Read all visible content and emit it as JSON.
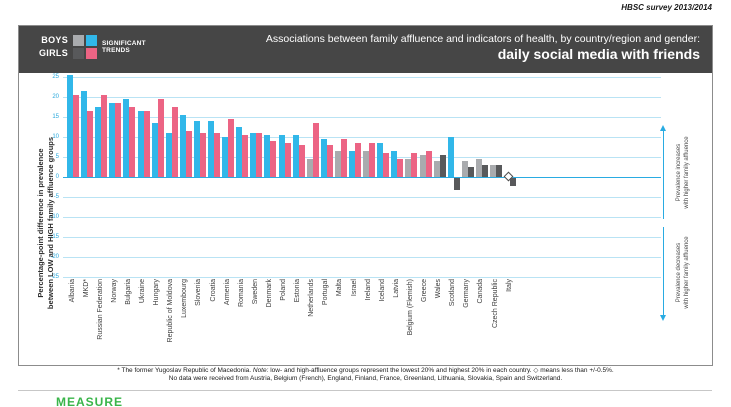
{
  "header": {
    "survey_label": "HBSC survey 2013/2014",
    "title_line1": "Associations between family affluence and indicators of health, by country/region and gender:",
    "title_line2": "daily social media with friends",
    "legend": {
      "boys_label": "BOYS",
      "girls_label": "GIRLS",
      "significant_line1": "SIGNIFICANT",
      "significant_line2": "TRENDS"
    }
  },
  "y_axis": {
    "label_line1": "Percentage-point difference in prevalence",
    "label_line2": "between LOW and HIGH family affluence groups"
  },
  "right_annotations": {
    "increase_line1": "Prevalence increases",
    "increase_line2": "with higher family affluence",
    "decrease_line1": "Prevalence decreases",
    "decrease_line2": "with higher family affluence"
  },
  "footnote": {
    "line1_part1": "* The former Yugoslav Republic of Macedonia. ",
    "line1_note_word": "Note:",
    "line1_part2": " low- and high-affluence groups represent the lowest 20% and highest 20% in each country. ◇ means less than +/-0.5%.",
    "line2": "No data were received from Austria, Belgium (French), England, Finland, France, Greenland, Lithuania, Slovakia, Spain and Switzerland."
  },
  "watermark": "MEASURE",
  "chart_data": {
    "type": "bar",
    "title": "Associations between family affluence and indicators of health, by country/region and gender: daily social media with friends",
    "ylabel": "Percentage-point difference in prevalence between LOW and HIGH family affluence groups",
    "ylim": [
      -25,
      25
    ],
    "yticks": [
      25,
      20,
      15,
      10,
      5,
      0,
      -5,
      -10,
      -15,
      -20,
      -25
    ],
    "grid": true,
    "legend_position": "top-left",
    "series": [
      {
        "name": "Boys",
        "color_significant": "#31b7e9",
        "color_not_significant": "#a9abae"
      },
      {
        "name": "Girls",
        "color_significant": "#ec6484",
        "color_not_significant": "#58595b"
      }
    ],
    "marker_note": "diamond means less than +/-0.5",
    "countries": [
      {
        "name": "Albania",
        "boys": 25.5,
        "girls": 20.5,
        "boys_significant": true,
        "girls_significant": true
      },
      {
        "name": "MKD*",
        "boys": 21.5,
        "girls": 16.5,
        "boys_significant": true,
        "girls_significant": true
      },
      {
        "name": "Russian Federation",
        "boys": 17.5,
        "girls": 20.5,
        "boys_significant": true,
        "girls_significant": true
      },
      {
        "name": "Norway",
        "boys": 18.5,
        "girls": 18.5,
        "boys_significant": true,
        "girls_significant": true
      },
      {
        "name": "Bulgaria",
        "boys": 19.5,
        "girls": 17.5,
        "boys_significant": true,
        "girls_significant": true
      },
      {
        "name": "Ukraine",
        "boys": 16.5,
        "girls": 16.5,
        "boys_significant": true,
        "girls_significant": true
      },
      {
        "name": "Hungary",
        "boys": 13.5,
        "girls": 19.5,
        "boys_significant": true,
        "girls_significant": true
      },
      {
        "name": "Republic of Moldova",
        "boys": 11,
        "girls": 17.5,
        "boys_significant": true,
        "girls_significant": true
      },
      {
        "name": "Luxembourg",
        "boys": 15.5,
        "girls": 11.5,
        "boys_significant": true,
        "girls_significant": true
      },
      {
        "name": "Slovenia",
        "boys": 14,
        "girls": 11,
        "boys_significant": true,
        "girls_significant": true
      },
      {
        "name": "Croatia",
        "boys": 14,
        "girls": 11,
        "boys_significant": true,
        "girls_significant": true
      },
      {
        "name": "Armenia",
        "boys": 10,
        "girls": 14.5,
        "boys_significant": true,
        "girls_significant": true
      },
      {
        "name": "Romania",
        "boys": 12.5,
        "girls": 10.5,
        "boys_significant": true,
        "girls_significant": true
      },
      {
        "name": "Sweden",
        "boys": 11,
        "girls": 11,
        "boys_significant": true,
        "girls_significant": true
      },
      {
        "name": "Denmark",
        "boys": 10.5,
        "girls": 9,
        "boys_significant": true,
        "girls_significant": true
      },
      {
        "name": "Poland",
        "boys": 10.5,
        "girls": 8.5,
        "boys_significant": true,
        "girls_significant": true
      },
      {
        "name": "Estonia",
        "boys": 10.5,
        "girls": 8,
        "boys_significant": true,
        "girls_significant": true
      },
      {
        "name": "Netherlands",
        "boys": 4.5,
        "girls": 13.5,
        "boys_significant": false,
        "girls_significant": true
      },
      {
        "name": "Portugal",
        "boys": 9.5,
        "girls": 8,
        "boys_significant": true,
        "girls_significant": true
      },
      {
        "name": "Malta",
        "boys": 6.5,
        "girls": 9.5,
        "boys_significant": false,
        "girls_significant": true
      },
      {
        "name": "Israel",
        "boys": 6.5,
        "girls": 8.5,
        "boys_significant": true,
        "girls_significant": true
      },
      {
        "name": "Ireland",
        "boys": 6.5,
        "girls": 8.5,
        "boys_significant": false,
        "girls_significant": true
      },
      {
        "name": "Iceland",
        "boys": 8.5,
        "girls": 6,
        "boys_significant": true,
        "girls_significant": true
      },
      {
        "name": "Latvia",
        "boys": 6.5,
        "girls": 4.5,
        "boys_significant": true,
        "girls_significant": true
      },
      {
        "name": "Belgium (Flemish)",
        "boys": 4.5,
        "girls": 6,
        "boys_significant": false,
        "girls_significant": true
      },
      {
        "name": "Greece",
        "boys": 5.5,
        "girls": 6.5,
        "boys_significant": false,
        "girls_significant": true
      },
      {
        "name": "Wales",
        "boys": 4,
        "girls": 5.5,
        "boys_significant": false,
        "girls_significant": false
      },
      {
        "name": "Scotland",
        "boys": 10,
        "girls": -3,
        "boys_significant": true,
        "girls_significant": false
      },
      {
        "name": "Germany",
        "boys": 4,
        "girls": 2.5,
        "boys_significant": false,
        "girls_significant": false
      },
      {
        "name": "Canada",
        "boys": 4.5,
        "girls": 3,
        "boys_significant": false,
        "girls_significant": false
      },
      {
        "name": "Czech Republic",
        "boys": 3,
        "girls": 3,
        "boys_significant": false,
        "girls_significant": false
      },
      {
        "name": "Italy",
        "boys": 0,
        "girls": -2,
        "boys_significant": false,
        "girls_significant": false,
        "boys_marker": "diamond"
      }
    ]
  }
}
